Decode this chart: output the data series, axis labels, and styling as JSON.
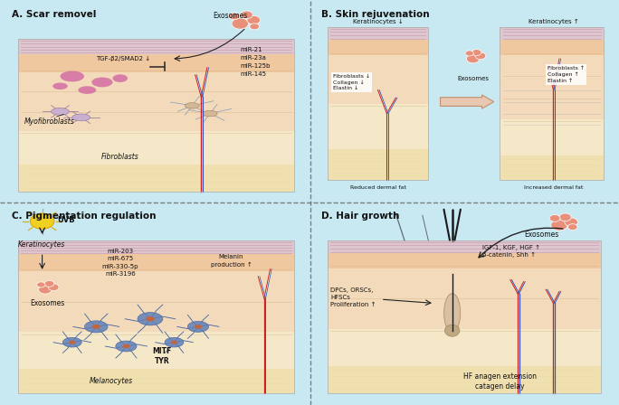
{
  "bg_color": "#c8e8f2",
  "panel_A_bg": "#daeef5",
  "panel_B_bg": "#daeef5",
  "panel_C_bg": "#daeef5",
  "panel_D_bg": "#daeef5",
  "skin_epi_color": "#f0c8a0",
  "skin_derm_color": "#f2daba",
  "skin_fat_color": "#f5e8c8",
  "skin_hypo_color": "#f0e0b0",
  "keratin_stripe_color": "#c090a8",
  "exosome_fill": "#e8907a",
  "exosome_edge": "#ffffff",
  "scar_color": "#d060a0",
  "melanocyte_body": "#6080b8",
  "melanocyte_nucleus": "#d06030",
  "blood_red": "#c82020",
  "blood_blue": "#3355bb",
  "hair_dark": "#1a1a1a",
  "arrow_dark": "#222222",
  "arrow_mid": "#888888",
  "text_dark": "#111111",
  "inhibit_bar_color": "#333333",
  "dashed_line_color": "#666666",
  "white_box_bg": "#ffffff",
  "fat_texture": "#e8d8a0",
  "panel_A_title": "A. Scar removel",
  "panel_B_title": "B. Skin rejuvenation",
  "panel_C_title": "C. Pigmentation regulation",
  "panel_D_title": "D. Hair growth",
  "lbl_exosomes": "Exosomes",
  "lbl_A_tgf": "TGF-β2/SMAD2 ↓",
  "lbl_A_mir": "miR-21\nmiR-23a\nmiR-125b\nmiR-145",
  "lbl_A_myofib": "Myofibroblasts",
  "lbl_A_fib": "Fibroblasts",
  "lbl_B_kerati_down": "Keratinocytes ↓",
  "lbl_B_fib_down": "Fibroblasts ↓\nCollagen ↓\nElastin ↓",
  "lbl_B_reduced": "Reduced dermal fat",
  "lbl_B_kerati_up": "Keratinocytes ↑",
  "lbl_B_fib_up": "Fibroblasts ↑\nCollagen ↑\nElastin ↑",
  "lbl_B_increased": "Increased dermal fat",
  "lbl_C_uvb": "UVB",
  "lbl_C_kerati": "Keratinocytes",
  "lbl_C_mir": "miR-203\nmiR-675\nmiR-330-5p\nmiR-3196",
  "lbl_C_melanin": "Melanin\nproduction ↑",
  "lbl_C_exosomes": "Exosomes",
  "lbl_C_mitf": "MITF\nTYR",
  "lbl_C_melano": "Melanocytes",
  "lbl_D_exosomes": "Exosomes",
  "lbl_D_igf": "IGF-1, KGF, HGF ↑\nβ-catenin, Shh ↑",
  "lbl_D_dpcs": "DPCs, ORSCs,\nHFSCs\nProliferation ↑",
  "lbl_D_hf": "HF anagen extension\ncatagen delay"
}
